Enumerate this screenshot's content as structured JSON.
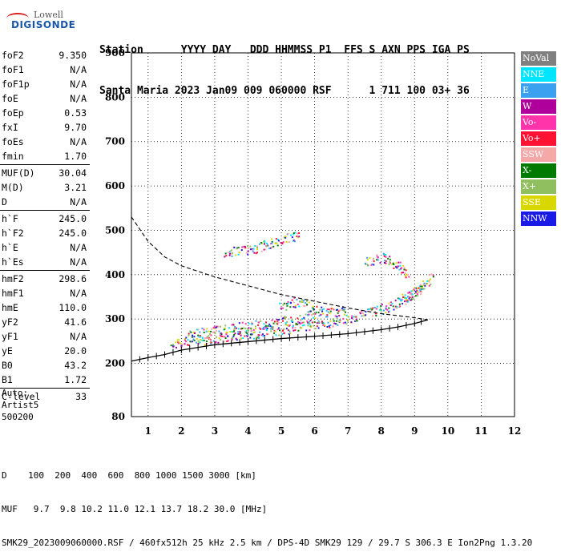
{
  "logo": {
    "line1": "Lowell",
    "line2": "DIGISONDE"
  },
  "header": {
    "labels": "Station      YYYY DAY   DDD HHMMSS P1  FFS S AXN PPS IGA PS",
    "values": "Santa Maria 2023 Jan09 009 060000 RSF      1 711 100 03+ 36"
  },
  "params": {
    "group1": [
      {
        "key": "foF2",
        "value": "9.350"
      },
      {
        "key": "foF1",
        "value": "N/A"
      },
      {
        "key": "foF1p",
        "value": "N/A"
      },
      {
        "key": "foE",
        "value": "N/A"
      },
      {
        "key": "foEp",
        "value": "0.53"
      },
      {
        "key": "fxI",
        "value": "9.70"
      },
      {
        "key": "foEs",
        "value": "N/A"
      },
      {
        "key": "fmin",
        "value": "1.70"
      }
    ],
    "group2": [
      {
        "key": "MUF(D)",
        "value": "30.04"
      },
      {
        "key": "M(D)",
        "value": "3.21"
      },
      {
        "key": "D",
        "value": "N/A"
      }
    ],
    "group3": [
      {
        "key": "h`F",
        "value": "245.0"
      },
      {
        "key": "h`F2",
        "value": "245.0"
      },
      {
        "key": "h`E",
        "value": "N/A"
      },
      {
        "key": "h`Es",
        "value": "N/A"
      }
    ],
    "group4": [
      {
        "key": "hmF2",
        "value": "298.6"
      },
      {
        "key": "hmF1",
        "value": "N/A"
      },
      {
        "key": "hmE",
        "value": "110.0"
      },
      {
        "key": "yF2",
        "value": "41.6"
      },
      {
        "key": "yF1",
        "value": "N/A"
      },
      {
        "key": "yE",
        "value": "20.0"
      },
      {
        "key": "B0",
        "value": "43.2"
      },
      {
        "key": "B1",
        "value": "1.72"
      }
    ],
    "group5": [
      {
        "key": "C-level",
        "value": "33"
      }
    ]
  },
  "auto": {
    "line1": "Auto:",
    "line2": "Artist5",
    "line3": "500200"
  },
  "legend": [
    {
      "label": "NoVal",
      "color": "#808080"
    },
    {
      "label": "NNE",
      "color": "#00e5ff"
    },
    {
      "label": "E",
      "color": "#3aa0f0"
    },
    {
      "label": "W",
      "color": "#b0009b"
    },
    {
      "label": "Vo-",
      "color": "#ff33aa"
    },
    {
      "label": "Vo+",
      "color": "#ff1133"
    },
    {
      "label": "SSW",
      "color": "#f4a8a8"
    },
    {
      "label": "X-",
      "color": "#007a00"
    },
    {
      "label": "X+",
      "color": "#8fbf5f"
    },
    {
      "label": "SSE",
      "color": "#d8d800"
    },
    {
      "label": "NNW",
      "color": "#1a1ae6"
    }
  ],
  "footer": {
    "line1": "D    100  200  400  600  800 1000 1500 3000 [km]",
    "line2": "MUF   9.7  9.8 10.2 11.0 12.1 13.7 18.2 30.0 [MHz]",
    "line3": "SMK29_2023009060000.RSF / 460fx512h 25 kHz 2.5 km / DPS-4D SMK29 129 / 29.7 S 306.3 E Ion2Png 1.3.20"
  },
  "chart_data": {
    "type": "scatter",
    "title": "",
    "xlabel": "",
    "ylabel": "",
    "xlim": [
      0.5,
      12
    ],
    "ylim": [
      80,
      900
    ],
    "x_ticks": [
      1,
      2,
      3,
      4,
      5,
      6,
      7,
      8,
      9,
      10,
      11,
      12
    ],
    "y_ticks": [
      80,
      200,
      300,
      400,
      500,
      600,
      700,
      800,
      900
    ],
    "grid": true,
    "legend_position": "right",
    "series": [
      {
        "kind": "trace",
        "points": [
          [
            1.7,
            245
          ],
          [
            2.2,
            250
          ],
          [
            3,
            258
          ],
          [
            4,
            266
          ],
          [
            5,
            276
          ],
          [
            6,
            288
          ],
          [
            7,
            302
          ],
          [
            8,
            322
          ],
          [
            8.5,
            338
          ],
          [
            9,
            362
          ],
          [
            9.3,
            380
          ]
        ]
      },
      {
        "kind": "trace",
        "points": [
          [
            3.3,
            450
          ],
          [
            3.8,
            455
          ],
          [
            4.2,
            460
          ],
          [
            4.6,
            470
          ],
          [
            5,
            478
          ],
          [
            5.3,
            485
          ],
          [
            5.6,
            488
          ]
        ]
      },
      {
        "kind": "trace",
        "points": [
          [
            7.5,
            430
          ],
          [
            8,
            440
          ],
          [
            8.5,
            420
          ],
          [
            8.8,
            400
          ]
        ]
      },
      {
        "kind": "trace",
        "points": [
          [
            5,
            330
          ],
          [
            5.5,
            340
          ],
          [
            6,
            320
          ],
          [
            6.5,
            315
          ],
          [
            7,
            320
          ]
        ]
      },
      {
        "kind": "trace",
        "points": [
          [
            8.6,
            340
          ],
          [
            9,
            360
          ],
          [
            9.3,
            380
          ],
          [
            9.6,
            398
          ]
        ]
      },
      {
        "kind": "trace",
        "points": [
          [
            2.2,
            265
          ],
          [
            3,
            275
          ],
          [
            4,
            285
          ],
          [
            5,
            295
          ],
          [
            6,
            305
          ]
        ]
      },
      {
        "kind": "profile",
        "points": [
          [
            0.5,
            205
          ],
          [
            1,
            213
          ],
          [
            1.5,
            220
          ],
          [
            2,
            230
          ],
          [
            3,
            242
          ],
          [
            4,
            249
          ],
          [
            5,
            256
          ],
          [
            6,
            261
          ],
          [
            7,
            267
          ],
          [
            8,
            276
          ],
          [
            8.5,
            282
          ],
          [
            9,
            290
          ],
          [
            9.4,
            298
          ]
        ]
      },
      {
        "kind": "extrapolation",
        "points": [
          [
            0.5,
            530
          ],
          [
            1,
            475
          ],
          [
            1.5,
            440
          ],
          [
            2,
            420
          ],
          [
            3,
            395
          ],
          [
            4,
            375
          ],
          [
            5,
            355
          ],
          [
            6,
            340
          ],
          [
            7,
            325
          ],
          [
            8,
            312
          ],
          [
            9,
            303
          ],
          [
            9.4,
            298
          ]
        ]
      }
    ]
  }
}
